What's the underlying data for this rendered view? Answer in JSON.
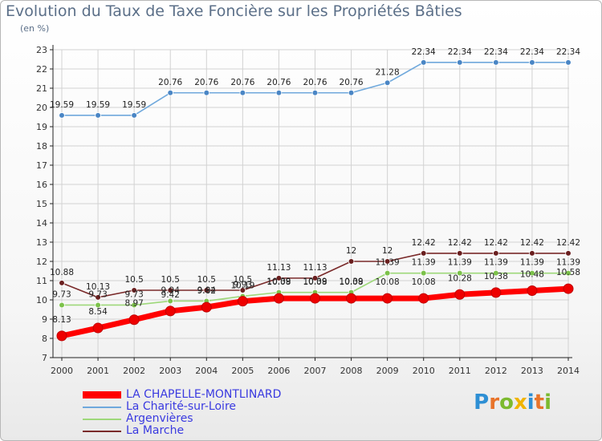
{
  "header": {
    "title": "Evolution du Taux de Taxe Foncière sur les Propriétés Bâties",
    "unit": "(en %)"
  },
  "brand": {
    "letters": [
      "P",
      "r",
      "o",
      "x",
      "i",
      "t",
      "i"
    ],
    "colors": [
      "#2e8fd4",
      "#e8742b",
      "#7cba2f",
      "#f0b400",
      "#2e8fd4",
      "#e8742b",
      "#7cba2f"
    ]
  },
  "chart_data": {
    "type": "line",
    "title": "Evolution du Taux de Taxe Foncière sur les Propriétés Bâties",
    "ylabel": "(en %)",
    "xlabel": "",
    "ylim": [
      7,
      23
    ],
    "yticks": [
      7,
      8,
      9,
      10,
      11,
      12,
      13,
      14,
      15,
      16,
      17,
      18,
      19,
      20,
      21,
      22,
      23
    ],
    "categories": [
      "2000",
      "2001",
      "2002",
      "2003",
      "2004",
      "2005",
      "2006",
      "2007",
      "2008",
      "2009",
      "2010",
      "2011",
      "2012",
      "2013",
      "2014"
    ],
    "series": [
      {
        "name": "La Charité-sur-Loire",
        "color": "#6fa8dc",
        "marker": "#4a86c5",
        "values": [
          19.59,
          19.59,
          19.59,
          20.76,
          20.76,
          20.76,
          20.76,
          20.76,
          20.76,
          21.28,
          22.34,
          22.34,
          22.34,
          22.34,
          22.34
        ],
        "labels": [
          "19.59",
          "19.59",
          "19.59",
          "20.76",
          "20.76",
          "20.76",
          "20.76",
          "20.76",
          "20.76",
          "21.28",
          "22.34",
          "22.34",
          "22.34",
          "22.34",
          "22.34"
        ]
      },
      {
        "name": "Argenvières",
        "color": "#9ed87a",
        "marker": "#7cc24a",
        "values": [
          9.73,
          9.73,
          9.73,
          9.94,
          9.94,
          10.19,
          10.39,
          10.39,
          10.39,
          11.39,
          11.39,
          11.39,
          11.39,
          11.39,
          11.39
        ],
        "labels": [
          "9.73",
          "9.73",
          "9.73",
          "9.94",
          "9.94",
          "10.19",
          "10.39",
          "10.39",
          "10.39",
          "11.39",
          "11.39",
          "11.39",
          "11.39",
          "11.39",
          "11.39"
        ]
      },
      {
        "name": "La Marche",
        "color": "#7a2a2a",
        "marker": "#6a1f1f",
        "values": [
          10.88,
          10.13,
          10.5,
          10.5,
          10.5,
          10.5,
          11.13,
          11.13,
          12,
          12,
          12.42,
          12.42,
          12.42,
          12.42,
          12.42
        ],
        "labels": [
          "10.88",
          "10.13",
          "10.5",
          "10.5",
          "10.5",
          "10.5",
          "11.13",
          "11.13",
          "12",
          "12",
          "12.42",
          "12.42",
          "12.42",
          "12.42",
          "12.42"
        ]
      },
      {
        "name": "LA CHAPELLE-MONTLINARD",
        "color": "#ff0000",
        "marker": "#ee0000",
        "values": [
          8.13,
          8.54,
          8.97,
          9.42,
          9.62,
          9.93,
          10.08,
          10.08,
          10.08,
          10.08,
          10.08,
          10.28,
          10.38,
          10.48,
          10.58
        ],
        "labels": [
          "8.13",
          "8.54",
          "8.97",
          "9.42",
          "9.62",
          "9.93",
          "10.08",
          "10.08",
          "10.08",
          "10.08",
          "10.08",
          "10.28",
          "10.38",
          "10.48",
          "10.58"
        ]
      }
    ],
    "legend": [
      {
        "name": "LA CHAPELLE-MONTLINARD",
        "color": "#ff0000",
        "text_color": "#3a3ae0"
      },
      {
        "name": "La Charité-sur-Loire",
        "color": "#6fa8dc",
        "text_color": "#3a3ae0"
      },
      {
        "name": "Argenvières",
        "color": "#9ed87a",
        "text_color": "#3a3ae0"
      },
      {
        "name": "La Marche",
        "color": "#7a2a2a",
        "text_color": "#3a3ae0"
      }
    ]
  }
}
